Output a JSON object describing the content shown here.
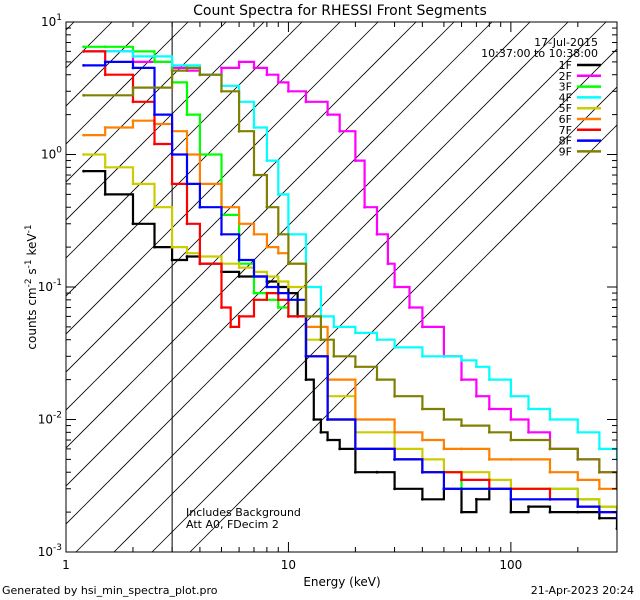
{
  "chart_data": {
    "type": "line",
    "title": "Count Spectra for RHESSI Front Segments",
    "xlabel": "Energy (keV)",
    "ylabel_parts": [
      "counts cm",
      "-2",
      " s",
      "-1",
      " keV",
      "-1"
    ],
    "xscale": "log",
    "yscale": "log",
    "xlim": [
      1,
      300
    ],
    "ylim": [
      0.001,
      10
    ],
    "x_ticks": [
      {
        "value": 1,
        "label": "1"
      },
      {
        "value": 10,
        "label": "10"
      },
      {
        "value": 100,
        "label": "100"
      }
    ],
    "y_ticks": [
      {
        "value": 0.001,
        "base": "10",
        "exp": "-3"
      },
      {
        "value": 0.01,
        "base": "10",
        "exp": "-2"
      },
      {
        "value": 0.1,
        "base": "10",
        "exp": "-1"
      },
      {
        "value": 1,
        "base": "10",
        "exp": "0"
      },
      {
        "value": 10,
        "base": "10",
        "exp": "1"
      }
    ],
    "date": "17-Jul-2015",
    "time_range": "10:37:00 to 10:38:00",
    "annotations": [
      "Includes Background",
      "Att A0, FDecim 2"
    ],
    "shaded_region_xmax": 3,
    "legend_position": "top-right",
    "series": [
      {
        "name": "1F",
        "color": "#000000",
        "x": [
          1.2,
          1.5,
          2,
          2.5,
          3,
          3.5,
          4,
          5,
          6,
          7,
          8,
          9,
          10,
          11,
          12,
          13,
          14,
          15,
          17,
          20,
          25,
          30,
          40,
          50,
          60,
          70,
          80,
          100,
          120,
          150,
          200,
          250,
          300
        ],
        "y": [
          0.75,
          0.5,
          0.3,
          0.2,
          0.16,
          0.17,
          0.15,
          0.13,
          0.12,
          0.12,
          0.11,
          0.1,
          0.09,
          0.06,
          0.02,
          0.01,
          0.008,
          0.007,
          0.006,
          0.004,
          0.004,
          0.003,
          0.0025,
          0.003,
          0.002,
          0.0025,
          0.003,
          0.002,
          0.0022,
          0.002,
          0.002,
          0.0018,
          0.0015
        ]
      },
      {
        "name": "2F",
        "color": "#ff00ff",
        "x": [
          1.2,
          2,
          3,
          3.5,
          4,
          5,
          6,
          7,
          8,
          9,
          10,
          12,
          15,
          17,
          20,
          22,
          25,
          28,
          30,
          35,
          40,
          50,
          60,
          70,
          80,
          100,
          120,
          150,
          200,
          250,
          300
        ],
        "y": [
          6,
          5,
          4.5,
          4.3,
          4,
          4.5,
          5,
          4.5,
          4,
          3.5,
          3,
          2.5,
          2,
          1.5,
          0.9,
          0.4,
          0.25,
          0.15,
          0.1,
          0.07,
          0.05,
          0.03,
          0.02,
          0.015,
          0.012,
          0.01,
          0.008,
          0.006,
          0.005,
          0.004,
          0.003
        ]
      },
      {
        "name": "3F",
        "color": "#00ff00",
        "x": [
          1.2,
          1.5,
          2,
          2.5,
          3,
          3.5,
          4,
          5,
          6,
          7,
          8,
          9,
          10,
          12,
          15,
          20,
          30,
          40,
          50,
          60,
          80,
          100,
          150,
          200,
          250,
          300
        ],
        "y": [
          6.5,
          6.5,
          6,
          5,
          3.5,
          2,
          1,
          0.35,
          0.15,
          0.09,
          0.08,
          0.07,
          0.06,
          0.03,
          0.01,
          0.006,
          0.005,
          0.004,
          0.004,
          0.003,
          0.003,
          0.003,
          0.003,
          0.0025,
          0.0022,
          0.002
        ]
      },
      {
        "name": "4F",
        "color": "#00ffff",
        "x": [
          1.2,
          2,
          3,
          4,
          5,
          6,
          7,
          8,
          9,
          10,
          12,
          14,
          16,
          20,
          25,
          30,
          40,
          50,
          60,
          70,
          80,
          100,
          120,
          150,
          200,
          250,
          300
        ],
        "y": [
          6,
          5.5,
          4.7,
          4,
          3.3,
          2.5,
          1.6,
          0.9,
          0.5,
          0.25,
          0.1,
          0.06,
          0.05,
          0.045,
          0.04,
          0.035,
          0.03,
          0.03,
          0.028,
          0.025,
          0.02,
          0.015,
          0.012,
          0.01,
          0.008,
          0.006,
          0.005
        ]
      },
      {
        "name": "5F",
        "color": "#cccc00",
        "x": [
          1.2,
          1.5,
          2,
          2.5,
          3,
          3.5,
          4,
          5,
          6,
          7,
          8,
          9,
          10,
          12,
          15,
          20,
          30,
          40,
          50,
          60,
          80,
          100,
          150,
          200,
          250,
          300
        ],
        "y": [
          1,
          0.8,
          0.6,
          0.4,
          0.2,
          0.18,
          0.17,
          0.15,
          0.14,
          0.13,
          0.12,
          0.11,
          0.1,
          0.04,
          0.015,
          0.008,
          0.006,
          0.005,
          0.004,
          0.004,
          0.0035,
          0.003,
          0.003,
          0.0025,
          0.0022,
          0.002
        ]
      },
      {
        "name": "6F",
        "color": "#ff8000",
        "x": [
          1.2,
          1.5,
          2,
          2.5,
          3,
          3.5,
          4,
          5,
          6,
          7,
          8,
          9,
          10,
          12,
          15,
          20,
          30,
          40,
          50,
          60,
          80,
          100,
          150,
          200,
          250,
          300
        ],
        "y": [
          1.4,
          1.6,
          1.8,
          1.7,
          1.5,
          1.0,
          0.6,
          0.4,
          0.3,
          0.25,
          0.2,
          0.18,
          0.15,
          0.05,
          0.02,
          0.01,
          0.008,
          0.007,
          0.006,
          0.006,
          0.005,
          0.005,
          0.004,
          0.0035,
          0.003,
          0.003
        ]
      },
      {
        "name": "7F",
        "color": "#ff0000",
        "x": [
          1.2,
          1.5,
          2,
          2.5,
          3,
          3.5,
          4,
          5,
          5.5,
          6,
          7,
          8,
          9,
          10,
          12,
          15,
          20,
          30,
          40,
          50,
          60,
          80,
          100,
          150,
          200,
          250,
          300
        ],
        "y": [
          6,
          4,
          2.5,
          1.2,
          0.6,
          0.3,
          0.15,
          0.07,
          0.05,
          0.06,
          0.08,
          0.09,
          0.08,
          0.06,
          0.03,
          0.01,
          0.006,
          0.005,
          0.004,
          0.004,
          0.0035,
          0.003,
          0.003,
          0.0025,
          0.0022,
          0.002,
          0.002
        ]
      },
      {
        "name": "8F",
        "color": "#0000ff",
        "x": [
          1.2,
          1.5,
          2,
          2.5,
          3,
          3.5,
          4,
          5,
          6,
          7,
          8,
          9,
          10,
          12,
          15,
          20,
          30,
          40,
          50,
          60,
          80,
          100,
          150,
          200,
          250,
          300
        ],
        "y": [
          4.7,
          5,
          4.5,
          2,
          1,
          0.6,
          0.4,
          0.25,
          0.16,
          0.12,
          0.1,
          0.09,
          0.08,
          0.03,
          0.01,
          0.006,
          0.005,
          0.004,
          0.003,
          0.003,
          0.003,
          0.0025,
          0.0025,
          0.0022,
          0.002,
          0.0018
        ]
      },
      {
        "name": "9F",
        "color": "#808000",
        "x": [
          1.2,
          2,
          3,
          3.5,
          4,
          5,
          6,
          7,
          8,
          9,
          10,
          12,
          14,
          16,
          20,
          25,
          30,
          40,
          50,
          60,
          80,
          100,
          150,
          200,
          250,
          300
        ],
        "y": [
          2.8,
          3.2,
          4.3,
          4.5,
          4,
          3,
          1.5,
          0.7,
          0.4,
          0.25,
          0.15,
          0.06,
          0.04,
          0.03,
          0.025,
          0.02,
          0.015,
          0.012,
          0.01,
          0.009,
          0.008,
          0.007,
          0.006,
          0.005,
          0.004,
          0.003
        ]
      }
    ]
  },
  "footer": {
    "generated_by": "Generated by hsi_min_spectra_plot.pro",
    "timestamp": "21-Apr-2023 20:24"
  }
}
